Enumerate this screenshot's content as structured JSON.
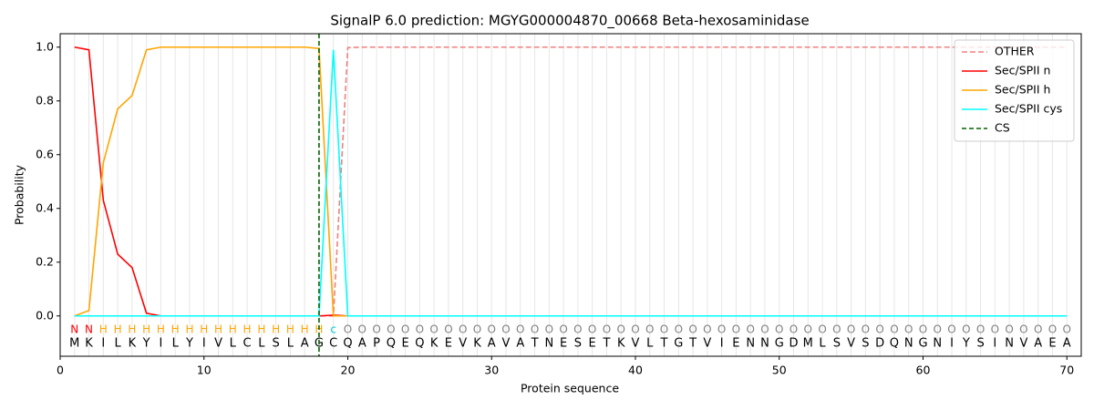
{
  "chart_data": {
    "type": "line",
    "title": "SignalP 6.0 prediction: MGYG000004870_00668 Beta-hexosaminidase",
    "xlabel": "Protein sequence",
    "ylabel": "Probability",
    "x": [
      1,
      2,
      3,
      4,
      5,
      6,
      7,
      8,
      9,
      10,
      11,
      12,
      13,
      14,
      15,
      16,
      17,
      18,
      19,
      20,
      21,
      22,
      23,
      24,
      25,
      26,
      27,
      28,
      29,
      30,
      31,
      32,
      33,
      34,
      35,
      36,
      37,
      38,
      39,
      40,
      41,
      42,
      43,
      44,
      45,
      46,
      47,
      48,
      49,
      50,
      51,
      52,
      53,
      54,
      55,
      56,
      57,
      58,
      59,
      60,
      61,
      62,
      63,
      64,
      65,
      66,
      67,
      68,
      69,
      70
    ],
    "series": [
      {
        "name": "OTHER",
        "color": "#f08080",
        "linestyle": "dashed",
        "values": [
          0,
          0,
          0,
          0,
          0,
          0,
          0,
          0,
          0,
          0,
          0,
          0,
          0,
          0,
          0,
          0,
          0,
          0,
          0,
          0.998,
          1,
          1,
          1,
          1,
          1,
          1,
          1,
          1,
          1,
          1,
          1,
          1,
          1,
          1,
          1,
          1,
          1,
          1,
          1,
          1,
          1,
          1,
          1,
          1,
          1,
          1,
          1,
          1,
          1,
          1,
          1,
          1,
          1,
          1,
          1,
          1,
          1,
          1,
          1,
          1,
          1,
          1,
          1,
          1,
          1,
          1,
          1,
          1,
          1,
          1
        ]
      },
      {
        "name": "Sec/SPII n",
        "color": "#ff0000",
        "linestyle": "solid",
        "values": [
          1.0,
          0.99,
          0.43,
          0.23,
          0.18,
          0.01,
          0,
          0,
          0,
          0,
          0,
          0,
          0,
          0,
          0,
          0,
          0,
          0,
          0.003,
          0,
          0,
          0,
          0,
          0,
          0,
          0,
          0,
          0,
          0,
          0,
          0,
          0,
          0,
          0,
          0,
          0,
          0,
          0,
          0,
          0,
          0,
          0,
          0,
          0,
          0,
          0,
          0,
          0,
          0,
          0,
          0,
          0,
          0,
          0,
          0,
          0,
          0,
          0,
          0,
          0,
          0,
          0,
          0,
          0,
          0,
          0,
          0,
          0,
          0,
          0
        ]
      },
      {
        "name": "Sec/SPII h",
        "color": "#ffa500",
        "linestyle": "solid",
        "values": [
          0,
          0.02,
          0.57,
          0.77,
          0.82,
          0.99,
          1.0,
          1.0,
          1.0,
          1.0,
          1.0,
          1.0,
          1.0,
          1.0,
          1.0,
          1.0,
          1.0,
          0.995,
          0,
          0,
          0,
          0,
          0,
          0,
          0,
          0,
          0,
          0,
          0,
          0,
          0,
          0,
          0,
          0,
          0,
          0,
          0,
          0,
          0,
          0,
          0,
          0,
          0,
          0,
          0,
          0,
          0,
          0,
          0,
          0,
          0,
          0,
          0,
          0,
          0,
          0,
          0,
          0,
          0,
          0,
          0,
          0,
          0,
          0,
          0,
          0,
          0,
          0,
          0,
          0
        ]
      },
      {
        "name": "Sec/SPII cys",
        "color": "#00ffff",
        "linestyle": "solid",
        "values": [
          0,
          0,
          0,
          0,
          0,
          0,
          0,
          0,
          0,
          0,
          0,
          0,
          0,
          0,
          0,
          0,
          0,
          0,
          0.99,
          0,
          0,
          0,
          0,
          0,
          0,
          0,
          0,
          0,
          0,
          0,
          0,
          0,
          0,
          0,
          0,
          0,
          0,
          0,
          0,
          0,
          0,
          0,
          0,
          0,
          0,
          0,
          0,
          0,
          0,
          0,
          0,
          0,
          0,
          0,
          0,
          0,
          0,
          0,
          0,
          0,
          0,
          0,
          0,
          0,
          0,
          0,
          0,
          0,
          0,
          0
        ]
      }
    ],
    "cs": {
      "name": "CS",
      "color": "#006400",
      "x": 18
    },
    "sequence": [
      "M",
      "K",
      "I",
      "L",
      "K",
      "Y",
      "I",
      "L",
      "Y",
      "I",
      "V",
      "L",
      "C",
      "L",
      "S",
      "L",
      "A",
      "G",
      "C",
      "Q",
      "A",
      "P",
      "Q",
      "E",
      "Q",
      "K",
      "E",
      "V",
      "K",
      "A",
      "V",
      "A",
      "T",
      "N",
      "E",
      "S",
      "E",
      "T",
      "K",
      "V",
      "L",
      "T",
      "G",
      "T",
      "V",
      "I",
      "E",
      "N",
      "N",
      "G",
      "D",
      "M",
      "L",
      "S",
      "V",
      "S",
      "D",
      "Q",
      "N",
      "G",
      "N",
      "I",
      "Y",
      "S",
      "I",
      "N",
      "V",
      "A",
      "E",
      "A"
    ],
    "labels": [
      "N",
      "N",
      "H",
      "H",
      "H",
      "H",
      "H",
      "H",
      "H",
      "H",
      "H",
      "H",
      "H",
      "H",
      "H",
      "H",
      "H",
      "H",
      "c",
      "O",
      "O",
      "O",
      "O",
      "O",
      "O",
      "O",
      "O",
      "O",
      "O",
      "O",
      "O",
      "O",
      "O",
      "O",
      "O",
      "O",
      "O",
      "O",
      "O",
      "O",
      "O",
      "O",
      "O",
      "O",
      "O",
      "O",
      "O",
      "O",
      "O",
      "O",
      "O",
      "O",
      "O",
      "O",
      "O",
      "O",
      "O",
      "O",
      "O",
      "O",
      "O",
      "O",
      "O",
      "O",
      "O",
      "O",
      "O",
      "O",
      "O",
      "O"
    ],
    "label_colors": {
      "N": "#ff0000",
      "H": "#ffa500",
      "c": "#00cccc",
      "O": "#808080"
    },
    "xlim": [
      0,
      71
    ],
    "ylim": [
      -0.15,
      1.05
    ],
    "xticks": [
      0,
      10,
      20,
      30,
      40,
      50,
      60,
      70
    ],
    "yticks": [
      {
        "value": 0,
        "label": "0.0"
      },
      {
        "value": 0.2,
        "label": "0.2"
      },
      {
        "value": 0.4,
        "label": "0.4"
      },
      {
        "value": 0.6,
        "label": "0.6"
      },
      {
        "value": 0.8,
        "label": "0.8"
      },
      {
        "value": 1.0,
        "label": "1.0"
      }
    ],
    "legend": "upper right"
  }
}
